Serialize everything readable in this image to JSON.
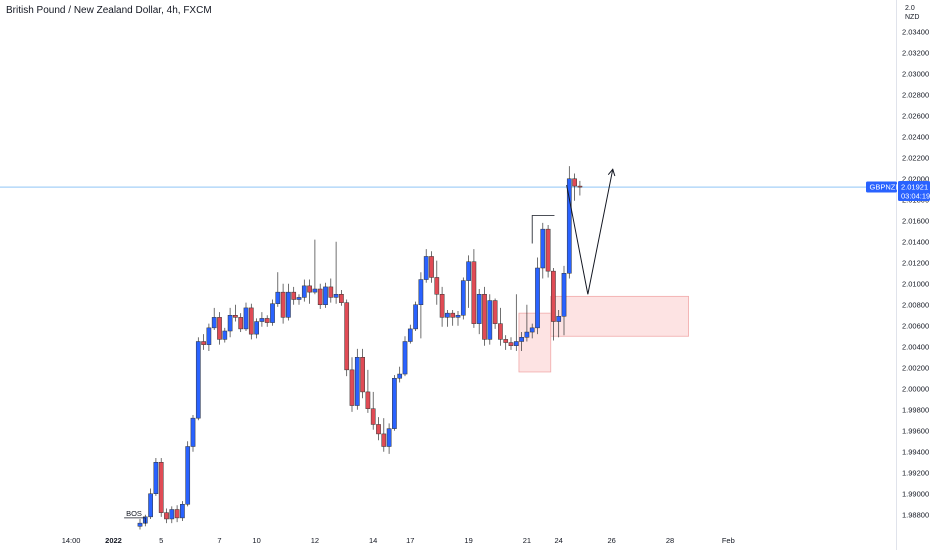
{
  "title": "British Pound / New Zealand Dollar, 4h, FXCM",
  "currency": {
    "line1": "2.0",
    "line2": "NZD"
  },
  "colors": {
    "bull": "#2962ff",
    "bear": "#e04b55",
    "price_line": "#4ea3f0",
    "zone_fill": "#fde3e3",
    "zone_stroke": "#f1aaaa",
    "wick": "#333333"
  },
  "price_badge": {
    "symbol": "GBPNZD",
    "price": "2.01921",
    "countdown": "03:04:19"
  },
  "annotations": {
    "bos_label": "BOS"
  },
  "chart_data": {
    "type": "candlestick",
    "y_axis_ticks": [
      "2.03400",
      "2.03200",
      "2.03000",
      "2.02800",
      "2.02600",
      "2.02400",
      "2.02200",
      "2.02000",
      "2.01800",
      "2.01600",
      "2.01400",
      "2.01200",
      "2.01000",
      "2.00800",
      "2.00600",
      "2.00400",
      "2.00200",
      "2.00000",
      "1.99800",
      "1.99600",
      "1.99400",
      "1.99200",
      "1.99000",
      "1.98800"
    ],
    "x_axis_ticks": [
      {
        "label": "14:00",
        "idx": -13
      },
      {
        "label": "2022",
        "idx": -5,
        "bold": true
      },
      {
        "label": "5",
        "idx": 4
      },
      {
        "label": "7",
        "idx": 15
      },
      {
        "label": "10",
        "idx": 22
      },
      {
        "label": "12",
        "idx": 33
      },
      {
        "label": "14",
        "idx": 44
      },
      {
        "label": "17",
        "idx": 51
      },
      {
        "label": "19",
        "idx": 62
      },
      {
        "label": "21",
        "idx": 73
      },
      {
        "label": "24",
        "idx": 79
      },
      {
        "label": "26",
        "idx": 89
      },
      {
        "label": "28",
        "idx": 100
      },
      {
        "label": "Feb",
        "idx": 111
      }
    ],
    "ylim": [
      1.9875,
      2.0355
    ],
    "candles": [
      [
        1.9869,
        1.9876,
        1.9866,
        1.9872
      ],
      [
        1.9872,
        1.988,
        1.9869,
        1.9878
      ],
      [
        1.9878,
        1.9905,
        1.9876,
        1.99
      ],
      [
        1.99,
        1.9934,
        1.9898,
        1.993
      ],
      [
        1.993,
        1.9934,
        1.9878,
        1.9882
      ],
      [
        1.9882,
        1.9886,
        1.9872,
        1.9876
      ],
      [
        1.9876,
        1.9888,
        1.9872,
        1.9885
      ],
      [
        1.9885,
        1.9889,
        1.9873,
        1.9877
      ],
      [
        1.9877,
        1.9893,
        1.9874,
        1.989
      ],
      [
        1.989,
        1.995,
        1.9888,
        1.9945
      ],
      [
        1.9945,
        1.9975,
        1.994,
        1.9972
      ],
      [
        1.9972,
        2.0049,
        1.997,
        2.0045
      ],
      [
        2.0045,
        2.0052,
        2.0037,
        2.0042
      ],
      [
        2.0042,
        2.0062,
        2.0036,
        2.0058
      ],
      [
        2.0058,
        2.0077,
        2.0056,
        2.0068
      ],
      [
        2.0068,
        2.0073,
        2.0042,
        2.0047
      ],
      [
        2.0047,
        2.0058,
        2.0044,
        2.0055
      ],
      [
        2.0055,
        2.0077,
        2.0049,
        2.007
      ],
      [
        2.007,
        2.008,
        2.0064,
        2.0068
      ],
      [
        2.0068,
        2.0072,
        2.0054,
        2.0057
      ],
      [
        2.0057,
        2.0082,
        2.0055,
        2.0077
      ],
      [
        2.0077,
        2.0081,
        2.0047,
        2.0052
      ],
      [
        2.0052,
        2.0067,
        2.0048,
        2.0064
      ],
      [
        2.0064,
        2.0073,
        2.0059,
        2.0067
      ],
      [
        2.0067,
        2.007,
        2.0059,
        2.0063
      ],
      [
        2.0063,
        2.0085,
        2.006,
        2.0081
      ],
      [
        2.0081,
        2.0111,
        2.0078,
        2.0092
      ],
      [
        2.0092,
        2.01,
        2.0062,
        2.0068
      ],
      [
        2.0068,
        2.01,
        2.0065,
        2.0092
      ],
      [
        2.0092,
        2.0097,
        2.008,
        2.0085
      ],
      [
        2.0085,
        2.009,
        2.008,
        2.0087
      ],
      [
        2.0087,
        2.0104,
        2.0083,
        2.0098
      ],
      [
        2.0098,
        2.0104,
        2.0081,
        2.0092
      ],
      [
        2.0092,
        2.0142,
        2.009,
        2.0095
      ],
      [
        2.0095,
        2.01,
        2.0076,
        2.008
      ],
      [
        2.008,
        2.0101,
        2.0077,
        2.0097
      ],
      [
        2.0097,
        2.0105,
        2.0082,
        2.0087
      ],
      [
        2.0087,
        2.014,
        2.0081,
        2.009
      ],
      [
        2.009,
        2.0094,
        2.0079,
        2.0082
      ],
      [
        2.0082,
        2.0085,
        2.0012,
        2.0018
      ],
      [
        2.0018,
        2.003,
        1.9978,
        1.9984
      ],
      [
        1.9984,
        2.0038,
        1.998,
        2.003
      ],
      [
        2.003,
        2.0038,
        1.9991,
        1.9997
      ],
      [
        1.9997,
        2.0018,
        1.9977,
        1.9981
      ],
      [
        1.9981,
        1.9997,
        1.9961,
        1.9966
      ],
      [
        1.9966,
        1.9973,
        1.9951,
        1.9957
      ],
      [
        1.9957,
        1.9972,
        1.994,
        1.9945
      ],
      [
        1.9945,
        1.9967,
        1.9938,
        1.9962
      ],
      [
        1.9962,
        2.0013,
        1.996,
        2.001
      ],
      [
        2.001,
        2.0021,
        2.0006,
        2.0014
      ],
      [
        2.0014,
        2.005,
        2.0012,
        2.0045
      ],
      [
        2.0045,
        2.0061,
        2.0043,
        2.0057
      ],
      [
        2.0057,
        2.0083,
        2.0055,
        2.008
      ],
      [
        2.008,
        2.0111,
        2.0048,
        2.0104
      ],
      [
        2.0104,
        2.0133,
        2.0101,
        2.0126
      ],
      [
        2.0126,
        2.0131,
        2.0101,
        2.0106
      ],
      [
        2.0106,
        2.0122,
        2.008,
        2.009
      ],
      [
        2.009,
        2.0097,
        2.0059,
        2.0068
      ],
      [
        2.0068,
        2.0075,
        2.0059,
        2.0072
      ],
      [
        2.0072,
        2.0075,
        2.006,
        2.0068
      ],
      [
        2.0068,
        2.0074,
        2.006,
        2.007
      ],
      [
        2.007,
        2.0106,
        2.0066,
        2.0103
      ],
      [
        2.0103,
        2.0127,
        2.0077,
        2.0121
      ],
      [
        2.0121,
        2.0133,
        2.0058,
        2.0062
      ],
      [
        2.0062,
        2.0095,
        2.0052,
        2.009
      ],
      [
        2.009,
        2.0097,
        2.0041,
        2.0047
      ],
      [
        2.0047,
        2.009,
        2.0042,
        2.0084
      ],
      [
        2.0084,
        2.0086,
        2.0057,
        2.0062
      ],
      [
        2.0062,
        2.0077,
        2.0041,
        2.0047
      ],
      [
        2.0047,
        2.0051,
        2.0037,
        2.0044
      ],
      [
        2.0044,
        2.0049,
        2.0037,
        2.0041
      ],
      [
        2.0041,
        2.009,
        2.0036,
        2.0045
      ],
      [
        2.0045,
        2.0054,
        2.0036,
        2.0049
      ],
      [
        2.0049,
        2.008,
        2.0045,
        2.0054
      ],
      [
        2.0054,
        2.0062,
        2.0048,
        2.0058
      ],
      [
        2.0058,
        2.0125,
        2.0052,
        2.0115
      ],
      [
        2.0115,
        2.0158,
        2.0105,
        2.0152
      ],
      [
        2.0152,
        2.0156,
        2.0106,
        2.0112
      ],
      [
        2.0112,
        2.0115,
        2.0046,
        2.0064
      ],
      [
        2.0064,
        2.0075,
        2.0049,
        2.0069
      ],
      [
        2.0069,
        2.0117,
        2.0051,
        2.011
      ],
      [
        2.011,
        2.0212,
        2.0105,
        2.02
      ],
      [
        2.02,
        2.0205,
        2.0179,
        2.0193
      ],
      [
        2.0193,
        2.0198,
        2.0184,
        2.0192
      ]
    ],
    "current_price": 2.01921,
    "zones": [
      {
        "idx_start": 71.5,
        "idx_end": 77.5,
        "top": 2.0072,
        "bottom": 2.0016
      },
      {
        "idx_start": 77.5,
        "idx_end": 103.5,
        "top": 2.0088,
        "bottom": 2.005
      }
    ],
    "bos": {
      "idx_start": -3,
      "idx_end": 1,
      "price": 1.9877
    },
    "swing_line": {
      "idx_start": 74,
      "idx_end": 78.2,
      "price": 2.0165
    },
    "projection": [
      {
        "idx": 80.5,
        "price": 2.0194
      },
      {
        "idx": 84.5,
        "price": 2.009
      },
      {
        "idx": 89.2,
        "price": 2.0209
      }
    ]
  }
}
